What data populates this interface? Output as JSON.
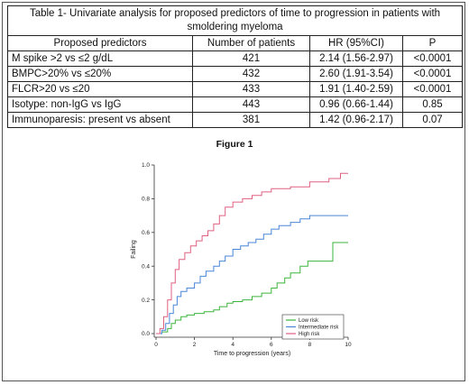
{
  "table": {
    "caption": "Table 1- Univariate analysis for proposed predictors of time to progression in patients with smoldering myeloma",
    "headers": [
      "Proposed predictors",
      "Number of patients",
      "HR (95%CI)",
      "P"
    ],
    "rows": [
      [
        "M spike >2 vs ≤2 g/dL",
        "421",
        "2.14 (1.56-2.97)",
        "<0.0001"
      ],
      [
        "BMPC>20% vs ≤20%",
        "432",
        "2.60 (1.91-3.54)",
        "<0.0001"
      ],
      [
        "FLCR>20 vs ≤20",
        "433",
        "1.91 (1.40-2.59)",
        "<0.0001"
      ],
      [
        "Isotype: non-IgG vs IgG",
        "443",
        "0.96 (0.66-1.44)",
        "0.85"
      ],
      [
        "Immunoparesis: present vs absent",
        "381",
        "1.42 (0.96-2.17)",
        "0.07"
      ]
    ]
  },
  "figure": {
    "title": "Figure 1"
  },
  "chart_data": {
    "type": "line",
    "xlabel": "Time to progression (years)",
    "ylabel": "Failing",
    "xlim": [
      0,
      10
    ],
    "ylim": [
      0,
      1.0
    ],
    "x_ticks": [
      "0",
      "2",
      "4",
      "6",
      "8",
      "10"
    ],
    "y_ticks": [
      "0.0",
      "0.2",
      "0.4",
      "0.6",
      "0.8",
      "1.0"
    ],
    "legend_position": "bottom-right",
    "series": [
      {
        "name": "Low risk",
        "color": "#3db53d",
        "points": [
          [
            0,
            0
          ],
          [
            0.3,
            0.01
          ],
          [
            0.6,
            0.03
          ],
          [
            0.8,
            0.06
          ],
          [
            1.0,
            0.08
          ],
          [
            1.3,
            0.1
          ],
          [
            1.6,
            0.11
          ],
          [
            2.0,
            0.12
          ],
          [
            2.5,
            0.13
          ],
          [
            3.0,
            0.14
          ],
          [
            3.3,
            0.16
          ],
          [
            3.7,
            0.18
          ],
          [
            4.0,
            0.19
          ],
          [
            4.5,
            0.2
          ],
          [
            5.0,
            0.22
          ],
          [
            5.5,
            0.24
          ],
          [
            6.0,
            0.27
          ],
          [
            6.3,
            0.3
          ],
          [
            6.7,
            0.33
          ],
          [
            7.0,
            0.36
          ],
          [
            7.5,
            0.4
          ],
          [
            7.9,
            0.43
          ],
          [
            9.0,
            0.43
          ],
          [
            9.2,
            0.54
          ],
          [
            10,
            0.54
          ]
        ]
      },
      {
        "name": "Intermediate risk",
        "color": "#4a86d8",
        "points": [
          [
            0,
            0
          ],
          [
            0.3,
            0.02
          ],
          [
            0.5,
            0.06
          ],
          [
            0.7,
            0.12
          ],
          [
            0.9,
            0.17
          ],
          [
            1.1,
            0.22
          ],
          [
            1.3,
            0.25
          ],
          [
            1.6,
            0.27
          ],
          [
            2.0,
            0.3
          ],
          [
            2.3,
            0.34
          ],
          [
            2.6,
            0.37
          ],
          [
            3.0,
            0.4
          ],
          [
            3.3,
            0.43
          ],
          [
            3.6,
            0.46
          ],
          [
            4.0,
            0.5
          ],
          [
            4.4,
            0.52
          ],
          [
            4.8,
            0.54
          ],
          [
            5.2,
            0.56
          ],
          [
            5.6,
            0.59
          ],
          [
            6.0,
            0.62
          ],
          [
            6.4,
            0.64
          ],
          [
            7.0,
            0.66
          ],
          [
            7.5,
            0.68
          ],
          [
            8.0,
            0.7
          ],
          [
            10,
            0.7
          ]
        ]
      },
      {
        "name": "High risk",
        "color": "#e06080",
        "points": [
          [
            0,
            0
          ],
          [
            0.2,
            0.03
          ],
          [
            0.4,
            0.1
          ],
          [
            0.6,
            0.2
          ],
          [
            0.8,
            0.3
          ],
          [
            1.0,
            0.38
          ],
          [
            1.2,
            0.44
          ],
          [
            1.5,
            0.48
          ],
          [
            1.8,
            0.52
          ],
          [
            2.1,
            0.55
          ],
          [
            2.4,
            0.58
          ],
          [
            2.7,
            0.61
          ],
          [
            3.0,
            0.65
          ],
          [
            3.3,
            0.7
          ],
          [
            3.6,
            0.75
          ],
          [
            4.0,
            0.78
          ],
          [
            4.5,
            0.8
          ],
          [
            5.0,
            0.82
          ],
          [
            5.5,
            0.84
          ],
          [
            6.0,
            0.86
          ],
          [
            7.0,
            0.87
          ],
          [
            7.5,
            0.87
          ],
          [
            8.0,
            0.9
          ],
          [
            9.0,
            0.92
          ],
          [
            9.6,
            0.95
          ],
          [
            10,
            0.95
          ]
        ]
      }
    ]
  }
}
